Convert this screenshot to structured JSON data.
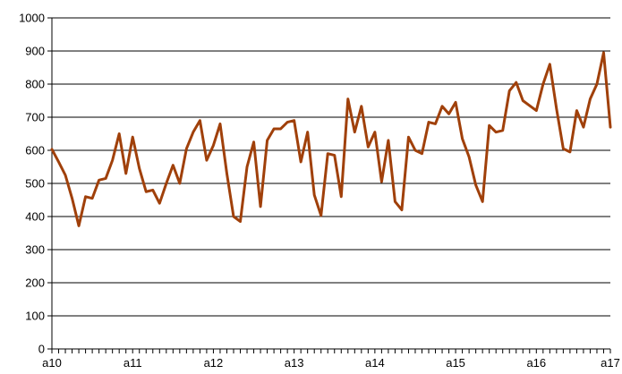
{
  "chart_data": {
    "type": "line",
    "title": "",
    "xlabel": "",
    "ylabel": "",
    "ylim": [
      0,
      1000
    ],
    "yticks": [
      0,
      100,
      200,
      300,
      400,
      500,
      600,
      700,
      800,
      900,
      1000
    ],
    "grid": true,
    "legend": "none",
    "x_labels": [
      "a10",
      "a11",
      "a12",
      "a13",
      "a14",
      "a15",
      "a16",
      "a17"
    ],
    "points_per_label": 12,
    "series": [
      {
        "color": "#A0400A",
        "values": [
          603,
          565,
          525,
          455,
          372,
          460,
          455,
          510,
          515,
          570,
          650,
          530,
          640,
          545,
          475,
          480,
          440,
          500,
          555,
          500,
          605,
          655,
          690,
          570,
          615,
          680,
          530,
          400,
          385,
          550,
          625,
          430,
          630,
          665,
          665,
          685,
          690,
          565,
          655,
          465,
          403,
          590,
          585,
          460,
          755,
          655,
          733,
          610,
          655,
          505,
          630,
          445,
          420,
          640,
          600,
          590,
          685,
          680,
          733,
          710,
          745,
          635,
          580,
          495,
          445,
          675,
          655,
          660,
          780,
          805,
          750,
          735,
          720,
          800,
          860,
          725,
          605,
          595,
          720,
          670,
          755,
          800,
          895,
          670
        ]
      }
    ]
  }
}
